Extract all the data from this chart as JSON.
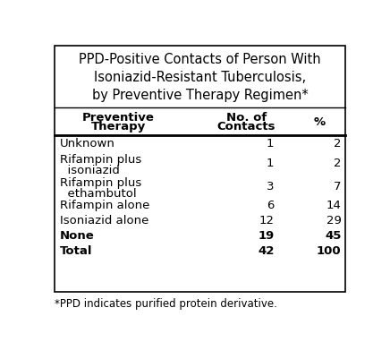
{
  "title_lines": [
    "PPD-Positive Contacts of Person With",
    "Isoniazid-Resistant Tuberculosis,",
    "by Preventive Therapy Regimen*"
  ],
  "col_headers_line1": [
    "Preventive",
    "No. of",
    "%"
  ],
  "col_headers_line2": [
    "Therapy",
    "Contacts",
    ""
  ],
  "rows": [
    {
      "therapy_line1": "Unknown",
      "therapy_line2": "",
      "contacts": "1",
      "pct": "2",
      "bold": false
    },
    {
      "therapy_line1": "Rifampin plus",
      "therapy_line2": "  isoniazid",
      "contacts": "1",
      "pct": "2",
      "bold": false
    },
    {
      "therapy_line1": "Rifampin plus",
      "therapy_line2": "  ethambutol",
      "contacts": "3",
      "pct": "7",
      "bold": false
    },
    {
      "therapy_line1": "Rifampin alone",
      "therapy_line2": "",
      "contacts": "6",
      "pct": "14",
      "bold": false
    },
    {
      "therapy_line1": "Isoniazid alone",
      "therapy_line2": "",
      "contacts": "12",
      "pct": "29",
      "bold": false
    },
    {
      "therapy_line1": "None",
      "therapy_line2": "",
      "contacts": "19",
      "pct": "45",
      "bold": true
    },
    {
      "therapy_line1": "Total",
      "therapy_line2": "",
      "contacts": "42",
      "pct": "100",
      "bold": true
    }
  ],
  "footnote": "*PPD indicates purified protein derivative.",
  "bg_color": "#ffffff",
  "border_color": "#000000",
  "text_color": "#000000",
  "title_fontsize": 10.5,
  "header_fontsize": 9.5,
  "body_fontsize": 9.5,
  "footnote_fontsize": 8.5
}
